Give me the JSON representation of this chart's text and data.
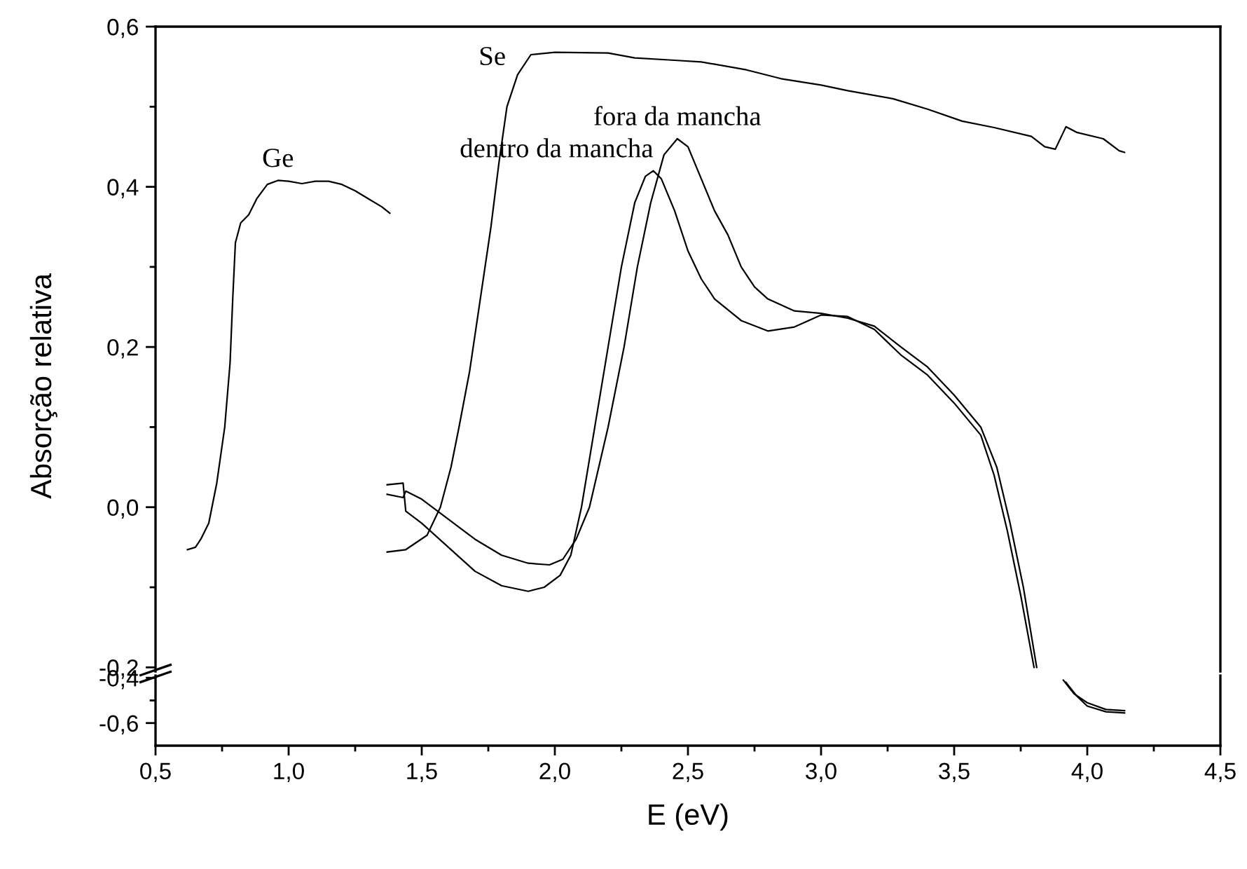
{
  "chart_data": [
    {
      "type": "line",
      "ylabel": "Absorção relativa",
      "xlim": [
        0.5,
        4.5
      ],
      "ylim": [
        -0.205,
        0.6
      ],
      "tick_labels": "y",
      "grid": false,
      "marker": "none",
      "line_style": "solid",
      "yticks": [
        {
          "value": -0.2,
          "label": "-0,2"
        },
        {
          "value": 0.0,
          "label": "0,0"
        },
        {
          "value": 0.2,
          "label": "0,2"
        },
        {
          "value": 0.4,
          "label": "0,4"
        },
        {
          "value": 0.6,
          "label": "0,6"
        }
      ],
      "series": [
        {
          "name": "Ge",
          "color": "#000000",
          "x": [
            0.62,
            0.65,
            0.67,
            0.7,
            0.73,
            0.76,
            0.78,
            0.79,
            0.8,
            0.82,
            0.85,
            0.88,
            0.92,
            0.96,
            1.0,
            1.05,
            1.1,
            1.15,
            1.2,
            1.25,
            1.3,
            1.35,
            1.38
          ],
          "values": [
            -0.053,
            -0.05,
            -0.04,
            -0.02,
            0.03,
            0.1,
            0.18,
            0.26,
            0.33,
            0.355,
            0.365,
            0.385,
            0.403,
            0.408,
            0.407,
            0.404,
            0.407,
            0.407,
            0.403,
            0.395,
            0.385,
            0.375,
            0.367
          ]
        },
        {
          "name": "Se",
          "color": "#000000",
          "x": [
            1.37,
            1.44,
            1.52,
            1.57,
            1.61,
            1.64,
            1.68,
            1.72,
            1.76,
            1.79,
            1.82,
            1.86,
            1.91,
            2.0,
            2.2,
            2.3,
            2.45,
            2.55,
            2.72,
            2.85,
            3.0,
            3.1,
            3.27,
            3.4,
            3.53,
            3.65,
            3.79,
            3.84,
            3.88,
            3.92,
            3.96,
            4.06,
            4.12,
            4.14
          ],
          "values": [
            -0.056,
            -0.053,
            -0.035,
            0.0,
            0.05,
            0.1,
            0.17,
            0.26,
            0.35,
            0.43,
            0.5,
            0.54,
            0.565,
            0.568,
            0.567,
            0.561,
            0.558,
            0.556,
            0.546,
            0.535,
            0.527,
            0.52,
            0.51,
            0.497,
            0.482,
            0.474,
            0.463,
            0.45,
            0.447,
            0.475,
            0.468,
            0.46,
            0.445,
            0.443
          ]
        },
        {
          "name": "dentro da mancha",
          "color": "#000000",
          "x": [
            1.37,
            1.43,
            1.44,
            1.5,
            1.6,
            1.7,
            1.8,
            1.9,
            1.96,
            2.02,
            2.06,
            2.1,
            2.15,
            2.2,
            2.25,
            2.3,
            2.34,
            2.37,
            2.4,
            2.45,
            2.5,
            2.55,
            2.6,
            2.7,
            2.8,
            2.9,
            3.0,
            3.1,
            3.2,
            3.3,
            3.4,
            3.5,
            3.6,
            3.65,
            3.7,
            3.75,
            3.8
          ],
          "values": [
            0.028,
            0.03,
            -0.005,
            -0.02,
            -0.05,
            -0.08,
            -0.098,
            -0.105,
            -0.1,
            -0.085,
            -0.06,
            0.0,
            0.1,
            0.2,
            0.3,
            0.38,
            0.413,
            0.42,
            0.41,
            0.37,
            0.32,
            0.285,
            0.26,
            0.233,
            0.22,
            0.225,
            0.24,
            0.238,
            0.222,
            0.19,
            0.165,
            0.13,
            0.09,
            0.04,
            -0.03,
            -0.11,
            -0.2
          ]
        },
        {
          "name": "fora da mancha",
          "color": "#000000",
          "x": [
            1.37,
            1.43,
            1.44,
            1.5,
            1.6,
            1.7,
            1.8,
            1.9,
            1.98,
            2.03,
            2.08,
            2.13,
            2.2,
            2.26,
            2.31,
            2.36,
            2.41,
            2.46,
            2.5,
            2.55,
            2.6,
            2.65,
            2.7,
            2.75,
            2.8,
            2.9,
            3.0,
            3.1,
            3.2,
            3.3,
            3.4,
            3.5,
            3.6,
            3.66,
            3.71,
            3.76,
            3.81
          ],
          "values": [
            0.016,
            0.012,
            0.02,
            0.01,
            -0.015,
            -0.04,
            -0.06,
            -0.07,
            -0.072,
            -0.065,
            -0.04,
            0.0,
            0.1,
            0.2,
            0.3,
            0.38,
            0.44,
            0.46,
            0.45,
            0.41,
            0.37,
            0.34,
            0.3,
            0.275,
            0.26,
            0.245,
            0.242,
            0.236,
            0.226,
            0.2,
            0.175,
            0.14,
            0.1,
            0.05,
            -0.02,
            -0.1,
            -0.2
          ]
        }
      ]
    },
    {
      "type": "line",
      "xlabel": "E (eV)",
      "xlim": [
        0.5,
        4.5
      ],
      "ylim": [
        -0.7,
        -0.39
      ],
      "grid": false,
      "marker": "none",
      "line_style": "solid",
      "xticks": [
        {
          "value": 0.5,
          "label": "0,5"
        },
        {
          "value": 1.0,
          "label": "1,0"
        },
        {
          "value": 1.5,
          "label": "1,5"
        },
        {
          "value": 2.0,
          "label": "2,0"
        },
        {
          "value": 2.5,
          "label": "2,5"
        },
        {
          "value": 3.0,
          "label": "3,0"
        },
        {
          "value": 3.5,
          "label": "3,5"
        },
        {
          "value": 4.0,
          "label": "4,0"
        },
        {
          "value": 4.5,
          "label": "4,5"
        }
      ],
      "yticks": [
        {
          "value": -0.6,
          "label": "-0,6"
        },
        {
          "value": -0.4,
          "label": "-0,4"
        }
      ],
      "series": [
        {
          "color": "#000000",
          "x": [
            3.92,
            3.96,
            4.0,
            4.07,
            4.14
          ],
          "values": [
            -0.42,
            -0.48,
            -0.525,
            -0.55,
            -0.555
          ]
        },
        {
          "color": "#000000",
          "x": [
            3.91,
            3.95,
            4.0,
            4.07,
            4.14
          ],
          "values": [
            -0.41,
            -0.47,
            -0.51,
            -0.54,
            -0.545
          ]
        }
      ]
    }
  ]
}
